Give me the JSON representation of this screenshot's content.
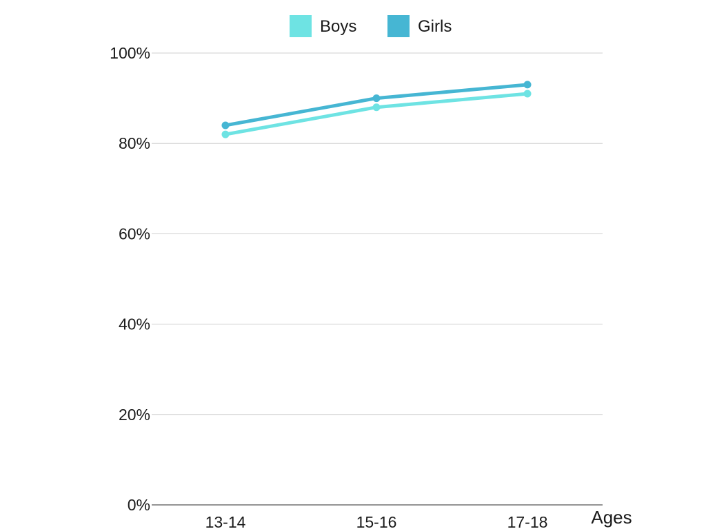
{
  "chart_data": {
    "type": "line",
    "categories": [
      "13-14",
      "15-16",
      "17-18"
    ],
    "series": [
      {
        "name": "Boys",
        "values": [
          82,
          88,
          91
        ],
        "color": "#6ee3e3"
      },
      {
        "name": "Girls",
        "values": [
          84,
          90,
          93
        ],
        "color": "#46b6d3"
      }
    ],
    "y_ticks": [
      "0%",
      "20%",
      "40%",
      "60%",
      "80%",
      "100%"
    ],
    "ylim": [
      0,
      100
    ],
    "xlabel": "Ages",
    "ylabel": "",
    "title": "",
    "grid": true,
    "legend_position": "top-center"
  }
}
